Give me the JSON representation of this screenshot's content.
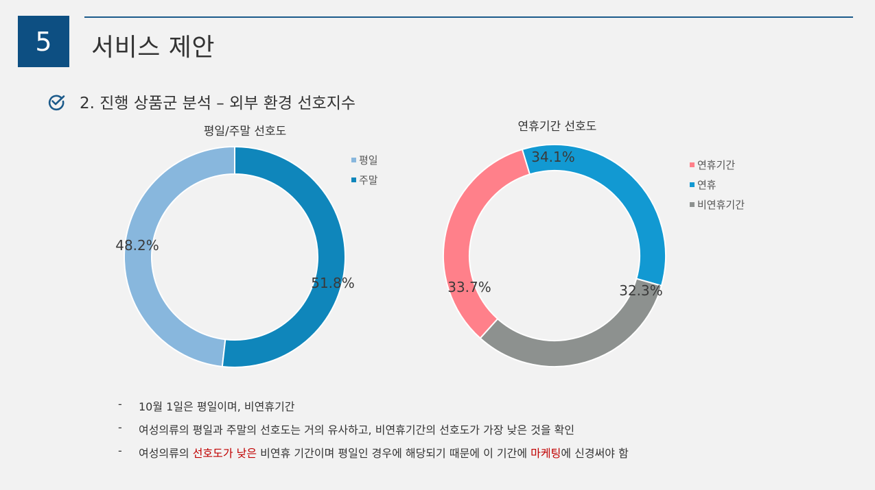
{
  "header": {
    "section_number": "5",
    "title": "서비스 제안"
  },
  "subtitle": "2. 진행 상품군 분석 – 외부 환경 선호지수",
  "colors": {
    "badge": "#0d4f82",
    "weekday": "#88b7dd",
    "weekend": "#0f86bb",
    "holiday_period": "#ff808a",
    "holiday": "#1299d2",
    "non_holiday": "#8d918f",
    "highlight": "#c00000"
  },
  "chart_data": [
    {
      "type": "pie",
      "donut": true,
      "title": "평일/주말 선호도",
      "categories": [
        "평일",
        "주말"
      ],
      "values": [
        48.2,
        51.8
      ],
      "labels": [
        "48.2%",
        "51.8%"
      ],
      "legend": "top-right"
    },
    {
      "type": "pie",
      "donut": true,
      "title": "연휴기간 선호도",
      "categories": [
        "연휴기간",
        "연휴",
        "비연휴기간"
      ],
      "values": [
        33.7,
        34.1,
        32.3
      ],
      "labels": [
        "33.7%",
        "34.1%",
        "32.3%"
      ],
      "legend": "top-right"
    }
  ],
  "notes": [
    {
      "dash": "-",
      "text": "10월 1일은 평일이며, 비연휴기간"
    },
    {
      "dash": "-",
      "text": "여성의류의 평일과 주말의 선호도는 거의 유사하고, 비연휴기간의 선호도가 가장 낮은 것을 확인"
    },
    {
      "dash": "-",
      "part1": "여성의류의 ",
      "hl1": "선호도가 낮은",
      "part2": " 비연휴 기간이며 평일인 경우에 해당되기 때문에 이 기간에 ",
      "hl2": "마케팅",
      "part3": "에 신경써야 함"
    }
  ]
}
